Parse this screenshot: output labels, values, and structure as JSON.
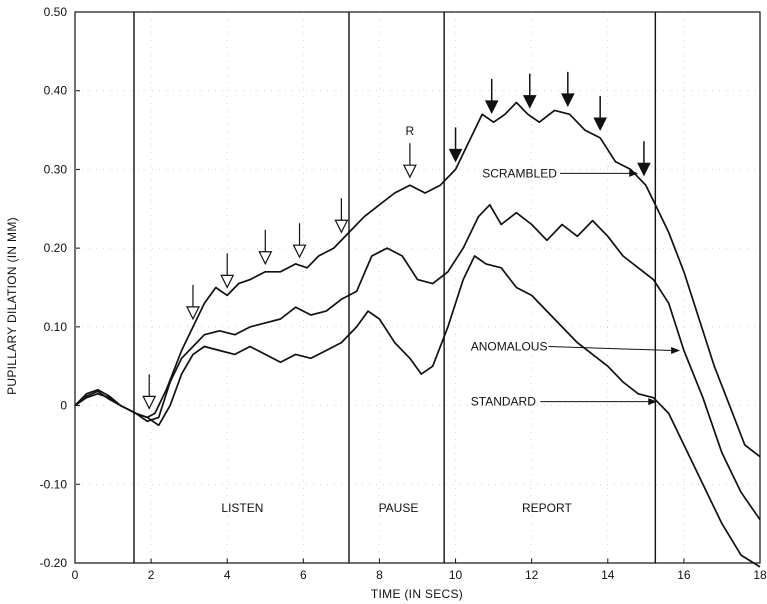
{
  "chart_data": {
    "type": "line",
    "xlabel": "TIME (IN SECS)",
    "ylabel": "PUPILLARY DILATION (IN MM)",
    "xlim": [
      0,
      18
    ],
    "ylim": [
      -0.2,
      0.5
    ],
    "x_ticks": [
      "0",
      "2",
      "4",
      "6",
      "8",
      "10",
      "12",
      "14",
      "16",
      "18"
    ],
    "y_ticks": [
      "-0.20",
      "-0.10",
      "0",
      "0.10",
      "0.20",
      "0.30",
      "0.40",
      "0.50"
    ],
    "phase_boundaries": [
      1.55,
      7.2,
      9.7,
      15.25
    ],
    "phases": [
      {
        "label": "LISTEN",
        "x": 4.4
      },
      {
        "label": "PAUSE",
        "x": 8.5
      },
      {
        "label": "REPORT",
        "x": 12.4
      }
    ],
    "series": [
      {
        "name": "SCRAMBLED",
        "points": [
          [
            0,
            0
          ],
          [
            0.3,
            0.01
          ],
          [
            0.6,
            0.015
          ],
          [
            0.9,
            0.01
          ],
          [
            1.2,
            0
          ],
          [
            1.6,
            -0.01
          ],
          [
            1.9,
            -0.015
          ],
          [
            2.1,
            -0.01
          ],
          [
            2.4,
            0.02
          ],
          [
            2.8,
            0.07
          ],
          [
            3.1,
            0.1
          ],
          [
            3.4,
            0.13
          ],
          [
            3.7,
            0.15
          ],
          [
            4.0,
            0.14
          ],
          [
            4.3,
            0.155
          ],
          [
            4.6,
            0.16
          ],
          [
            5.0,
            0.17
          ],
          [
            5.4,
            0.17
          ],
          [
            5.8,
            0.18
          ],
          [
            6.1,
            0.175
          ],
          [
            6.4,
            0.19
          ],
          [
            6.8,
            0.2
          ],
          [
            7.2,
            0.22
          ],
          [
            7.6,
            0.24
          ],
          [
            8.0,
            0.255
          ],
          [
            8.4,
            0.27
          ],
          [
            8.8,
            0.28
          ],
          [
            9.2,
            0.27
          ],
          [
            9.6,
            0.28
          ],
          [
            10.0,
            0.3
          ],
          [
            10.4,
            0.34
          ],
          [
            10.7,
            0.37
          ],
          [
            11.0,
            0.36
          ],
          [
            11.3,
            0.37
          ],
          [
            11.6,
            0.385
          ],
          [
            11.9,
            0.37
          ],
          [
            12.2,
            0.36
          ],
          [
            12.6,
            0.375
          ],
          [
            13.0,
            0.37
          ],
          [
            13.4,
            0.35
          ],
          [
            13.8,
            0.34
          ],
          [
            14.2,
            0.31
          ],
          [
            14.6,
            0.3
          ],
          [
            15.0,
            0.28
          ],
          [
            15.3,
            0.25
          ],
          [
            15.6,
            0.22
          ],
          [
            16.0,
            0.17
          ],
          [
            16.4,
            0.11
          ],
          [
            16.8,
            0.05
          ],
          [
            17.2,
            0
          ],
          [
            17.6,
            -0.05
          ],
          [
            18.0,
            -0.065
          ]
        ]
      },
      {
        "name": "ANOMALOUS",
        "points": [
          [
            0,
            0
          ],
          [
            0.3,
            0.012
          ],
          [
            0.6,
            0.018
          ],
          [
            0.9,
            0.008
          ],
          [
            1.2,
            0
          ],
          [
            1.6,
            -0.01
          ],
          [
            1.9,
            -0.02
          ],
          [
            2.2,
            -0.015
          ],
          [
            2.5,
            0.03
          ],
          [
            2.8,
            0.06
          ],
          [
            3.1,
            0.075
          ],
          [
            3.4,
            0.09
          ],
          [
            3.8,
            0.095
          ],
          [
            4.2,
            0.09
          ],
          [
            4.6,
            0.1
          ],
          [
            5.0,
            0.105
          ],
          [
            5.4,
            0.11
          ],
          [
            5.8,
            0.125
          ],
          [
            6.2,
            0.115
          ],
          [
            6.6,
            0.12
          ],
          [
            7.0,
            0.135
          ],
          [
            7.4,
            0.145
          ],
          [
            7.8,
            0.19
          ],
          [
            8.2,
            0.2
          ],
          [
            8.6,
            0.19
          ],
          [
            9.0,
            0.16
          ],
          [
            9.4,
            0.155
          ],
          [
            9.8,
            0.17
          ],
          [
            10.2,
            0.2
          ],
          [
            10.6,
            0.24
          ],
          [
            10.9,
            0.255
          ],
          [
            11.2,
            0.23
          ],
          [
            11.6,
            0.245
          ],
          [
            12.0,
            0.23
          ],
          [
            12.4,
            0.21
          ],
          [
            12.8,
            0.23
          ],
          [
            13.2,
            0.215
          ],
          [
            13.6,
            0.235
          ],
          [
            14.0,
            0.215
          ],
          [
            14.4,
            0.19
          ],
          [
            14.8,
            0.175
          ],
          [
            15.2,
            0.16
          ],
          [
            15.6,
            0.13
          ],
          [
            16.0,
            0.07
          ],
          [
            16.5,
            0.01
          ],
          [
            17.0,
            -0.06
          ],
          [
            17.5,
            -0.11
          ],
          [
            18.0,
            -0.145
          ]
        ]
      },
      {
        "name": "STANDARD",
        "points": [
          [
            0,
            0
          ],
          [
            0.3,
            0.015
          ],
          [
            0.6,
            0.02
          ],
          [
            0.9,
            0.012
          ],
          [
            1.2,
            0
          ],
          [
            1.6,
            -0.01
          ],
          [
            1.9,
            -0.015
          ],
          [
            2.2,
            -0.025
          ],
          [
            2.5,
            0
          ],
          [
            2.8,
            0.04
          ],
          [
            3.1,
            0.065
          ],
          [
            3.4,
            0.075
          ],
          [
            3.8,
            0.07
          ],
          [
            4.2,
            0.065
          ],
          [
            4.6,
            0.075
          ],
          [
            5.0,
            0.065
          ],
          [
            5.4,
            0.055
          ],
          [
            5.8,
            0.065
          ],
          [
            6.2,
            0.06
          ],
          [
            6.6,
            0.07
          ],
          [
            7.0,
            0.08
          ],
          [
            7.4,
            0.1
          ],
          [
            7.7,
            0.12
          ],
          [
            8.0,
            0.11
          ],
          [
            8.4,
            0.08
          ],
          [
            8.8,
            0.06
          ],
          [
            9.1,
            0.04
          ],
          [
            9.4,
            0.05
          ],
          [
            9.8,
            0.1
          ],
          [
            10.2,
            0.16
          ],
          [
            10.5,
            0.19
          ],
          [
            10.8,
            0.18
          ],
          [
            11.2,
            0.175
          ],
          [
            11.6,
            0.15
          ],
          [
            12.0,
            0.14
          ],
          [
            12.4,
            0.12
          ],
          [
            12.8,
            0.1
          ],
          [
            13.2,
            0.08
          ],
          [
            13.6,
            0.065
          ],
          [
            14.0,
            0.05
          ],
          [
            14.4,
            0.03
          ],
          [
            14.8,
            0.015
          ],
          [
            15.2,
            0.01
          ],
          [
            15.6,
            -0.01
          ],
          [
            16.0,
            -0.05
          ],
          [
            16.5,
            -0.1
          ],
          [
            17.0,
            -0.15
          ],
          [
            17.5,
            -0.19
          ],
          [
            18.0,
            -0.205
          ]
        ]
      }
    ],
    "series_labels": [
      {
        "series": "SCRAMBLED",
        "label": "SCRAMBLED",
        "text_x": 10.7,
        "text_y": 0.295,
        "arrow_to": [
          14.8,
          0.295
        ]
      },
      {
        "series": "ANOMALOUS",
        "label": "ANOMALOUS",
        "text_x": 10.4,
        "text_y": 0.075,
        "arrow_to": [
          15.9,
          0.07
        ]
      },
      {
        "series": "STANDARD",
        "label": "STANDARD",
        "text_x": 10.4,
        "text_y": 0.005,
        "arrow_to": [
          15.3,
          0.005
        ]
      }
    ],
    "open_arrows": [
      1.95,
      3.1,
      4.0,
      5.0,
      5.9,
      7.0,
      8.8
    ],
    "open_arrow_letter": {
      "x": 8.8,
      "label": "R"
    },
    "filled_arrows": [
      10.0,
      10.95,
      11.95,
      12.95,
      13.8,
      14.95
    ]
  }
}
